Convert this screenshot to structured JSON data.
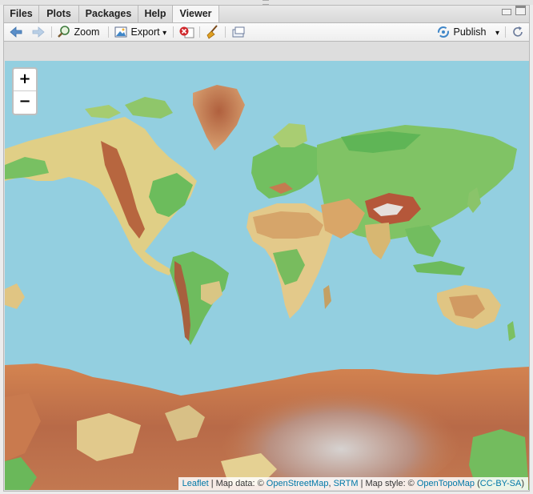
{
  "tabs": [
    {
      "label": "Files",
      "active": false
    },
    {
      "label": "Plots",
      "active": false
    },
    {
      "label": "Packages",
      "active": false
    },
    {
      "label": "Help",
      "active": false
    },
    {
      "label": "Viewer",
      "active": true
    }
  ],
  "toolbar": {
    "back_icon": "arrow-left-icon",
    "forward_icon": "arrow-right-icon",
    "zoom_label": "Zoom",
    "export_label": "Export",
    "export_caret": "▾",
    "stop_icon": "stop-icon",
    "clear_icon": "broom-icon",
    "popout_icon": "popout-icon",
    "publish_label": "Publish",
    "publish_caret": "▾",
    "refresh_icon": "refresh-icon"
  },
  "map": {
    "zoom_in": "+",
    "zoom_out": "−",
    "ocean_color": "#93cfe0",
    "attribution": {
      "leaflet": "Leaflet",
      "sep1": " | Map data: © ",
      "osm": "OpenStreetMap",
      "comma": ", ",
      "srtm": "SRTM",
      "sep2": " | Map style: © ",
      "otm": "OpenTopoMap",
      "open_paren": " (",
      "license": "CC-BY-SA",
      "close_paren": ")"
    }
  },
  "colors": {
    "land_low": "#6ab85a",
    "land_mid": "#e4d48a",
    "land_high": "#c0623e",
    "ice": "#d8d0cc",
    "link": "#0078a8"
  }
}
